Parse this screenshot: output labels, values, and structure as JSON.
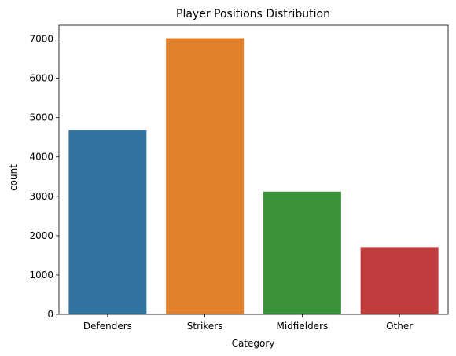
{
  "chart_data": {
    "type": "bar",
    "title": "Player Positions Distribution",
    "xlabel": "Category",
    "ylabel": "count",
    "categories": [
      "Defenders",
      "Strikers",
      "Midfielders",
      "Other"
    ],
    "values": [
      4680,
      7020,
      3120,
      1710
    ],
    "colors": [
      "#3274a1",
      "#e1812c",
      "#3a923a",
      "#c03d3e"
    ],
    "ylim": [
      0,
      7350
    ],
    "yticks": [
      0,
      1000,
      2000,
      3000,
      4000,
      5000,
      6000,
      7000
    ],
    "grid": false,
    "legend": "none"
  }
}
